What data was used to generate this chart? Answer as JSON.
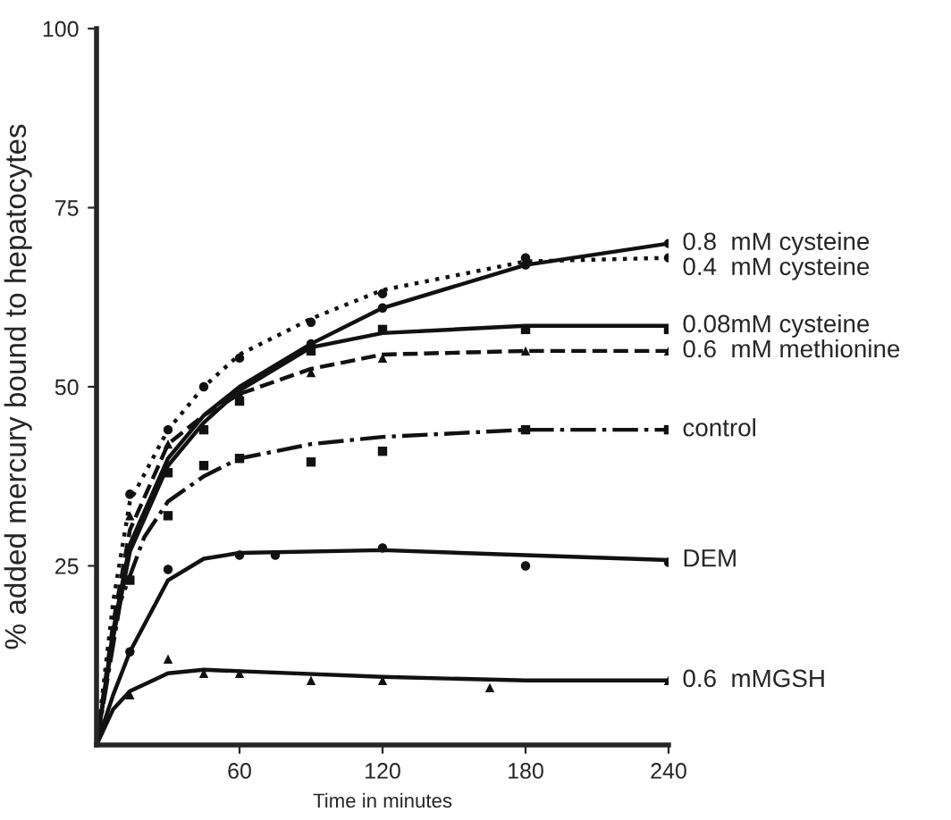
{
  "chart_data": {
    "type": "line",
    "xlabel": "Time in minutes",
    "ylabel": "% added mercury bound to hepatocytes",
    "xlim": [
      0,
      240
    ],
    "ylim": [
      0,
      100
    ],
    "xticks": [
      60,
      120,
      180,
      240
    ],
    "yticks": [
      25,
      50,
      75,
      100
    ],
    "grid": false,
    "legend": false,
    "series": [
      {
        "name": "0.8  mM cysteine",
        "line_style": "solid",
        "marker": "none",
        "color": "#111111",
        "x": [
          0,
          7,
          14,
          30,
          45,
          60,
          90,
          120,
          180,
          240
        ],
        "values": [
          0,
          16,
          28,
          40,
          46,
          50,
          56,
          61,
          67,
          70
        ]
      },
      {
        "name": "0.4  mM cysteine",
        "line_style": "dotted",
        "marker": "none",
        "color": "#111111",
        "x": [
          0,
          7,
          14,
          30,
          45,
          60,
          90,
          120,
          180,
          240
        ],
        "values": [
          0,
          20,
          34,
          44,
          50,
          54.5,
          59.5,
          63.5,
          67.5,
          68
        ]
      },
      {
        "name": "0.08mM cysteine",
        "line_style": "solid",
        "marker": "none",
        "color": "#111111",
        "x": [
          0,
          7,
          14,
          30,
          45,
          60,
          90,
          120,
          180,
          240
        ],
        "values": [
          0,
          15,
          27,
          39,
          45,
          49.5,
          55.5,
          57.5,
          58.5,
          58.5
        ]
      },
      {
        "name": "0.6  mM methionine",
        "line_style": "dashed",
        "marker": "none",
        "color": "#111111",
        "x": [
          0,
          7,
          14,
          30,
          45,
          60,
          90,
          120,
          180,
          240
        ],
        "values": [
          0,
          17,
          30,
          42,
          46,
          49,
          52.5,
          54.5,
          55,
          55
        ]
      },
      {
        "name": "control",
        "line_style": "dashdot",
        "marker": "none",
        "color": "#111111",
        "x": [
          0,
          10,
          20,
          30,
          45,
          60,
          90,
          120,
          180,
          240
        ],
        "values": [
          0,
          20,
          29,
          34,
          37.5,
          40,
          42,
          43,
          44,
          44
        ]
      },
      {
        "name": "DEM",
        "line_style": "solid",
        "marker": "none",
        "color": "#111111",
        "x": [
          0,
          7,
          14,
          30,
          45,
          60,
          120,
          180,
          240
        ],
        "values": [
          0,
          7,
          13,
          23,
          26,
          26.8,
          27.2,
          26.5,
          25.8
        ]
      },
      {
        "name": "0.6  mMGSH",
        "line_style": "solid",
        "marker": "none",
        "color": "#111111",
        "x": [
          0,
          7,
          14,
          30,
          45,
          60,
          120,
          180,
          240
        ],
        "values": [
          0,
          5,
          7.5,
          10,
          10.5,
          10.3,
          9.5,
          9,
          9
        ]
      },
      {
        "type": "scatter",
        "marker": "circle",
        "color": "#111111",
        "x": [
          90,
          120,
          180,
          240
        ],
        "values": [
          56,
          61,
          67,
          70
        ]
      },
      {
        "type": "scatter",
        "marker": "circle",
        "color": "#111111",
        "x": [
          14,
          30,
          45,
          60,
          90,
          120,
          180,
          240
        ],
        "values": [
          35,
          44,
          50,
          54,
          59,
          63,
          68,
          68
        ]
      },
      {
        "type": "scatter",
        "marker": "square",
        "color": "#111111",
        "x": [
          14,
          30,
          45,
          60,
          90,
          120,
          180,
          240
        ],
        "values": [
          23,
          38,
          44,
          48,
          55,
          58,
          58,
          58
        ]
      },
      {
        "type": "scatter",
        "marker": "triangle",
        "color": "#111111",
        "x": [
          14,
          30,
          60,
          90,
          120,
          180,
          240
        ],
        "values": [
          32,
          42,
          49,
          52,
          54,
          55,
          55
        ]
      },
      {
        "type": "scatter",
        "marker": "square",
        "color": "#111111",
        "x": [
          30,
          45,
          60,
          90,
          120,
          180,
          240
        ],
        "values": [
          32,
          39,
          40,
          39.5,
          41,
          44,
          44
        ]
      },
      {
        "type": "scatter",
        "marker": "circle",
        "color": "#111111",
        "x": [
          14,
          30,
          60,
          75,
          120,
          180,
          240
        ],
        "values": [
          13,
          24.5,
          26.5,
          26.5,
          27.5,
          25,
          25.5
        ]
      },
      {
        "type": "scatter",
        "marker": "triangle",
        "color": "#111111",
        "x": [
          14,
          30,
          45,
          60,
          90,
          120,
          165,
          240
        ],
        "values": [
          7,
          12,
          10,
          10,
          9,
          9,
          8,
          9
        ]
      }
    ]
  }
}
